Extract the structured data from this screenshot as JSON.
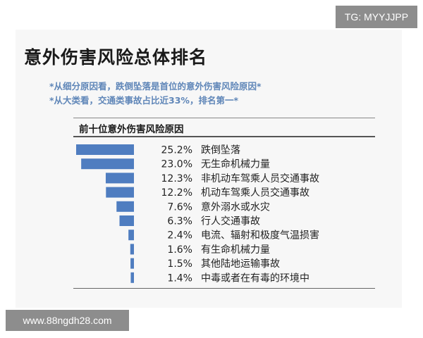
{
  "title": "意外伤害风险总体排名",
  "notes": [
    "*从细分原因看，跌倒坠落是首位的意外伤害风险原因*",
    "*从大类看，交通类事故占比近33%，排名第一*"
  ],
  "watermarks": {
    "top_right": "TG: MYYJJPP",
    "bottom_left": "www.88ngdh28.com"
  },
  "colors": {
    "bar": "#4f7dc0",
    "notes": "#5f86b8"
  },
  "chart_data": {
    "type": "bar",
    "orientation": "horizontal",
    "title": "前十位意外伤害风险原因",
    "categories": [
      "跌倒坠落",
      "无生命机械力量",
      "非机动车驾乘人员交通事故",
      "机动车驾乘人员交通事故",
      "意外溺水或水灾",
      "行人交通事故",
      "电流、辐射和极度气温损害",
      "有生命机械力量",
      "其他陆地运输事故",
      "中毒或者在有毒的环境中"
    ],
    "values": [
      25.2,
      23.0,
      12.3,
      12.2,
      7.6,
      6.3,
      2.4,
      1.6,
      1.5,
      1.4
    ],
    "value_labels": [
      "25.2%",
      "23.0%",
      "12.3%",
      "12.2%",
      "7.6%",
      "6.3%",
      "2.4%",
      "1.6%",
      "1.5%",
      "1.4%"
    ],
    "xlim": [
      0,
      25.2
    ],
    "bar_alignment": "right",
    "grid": false,
    "legend": "none"
  }
}
